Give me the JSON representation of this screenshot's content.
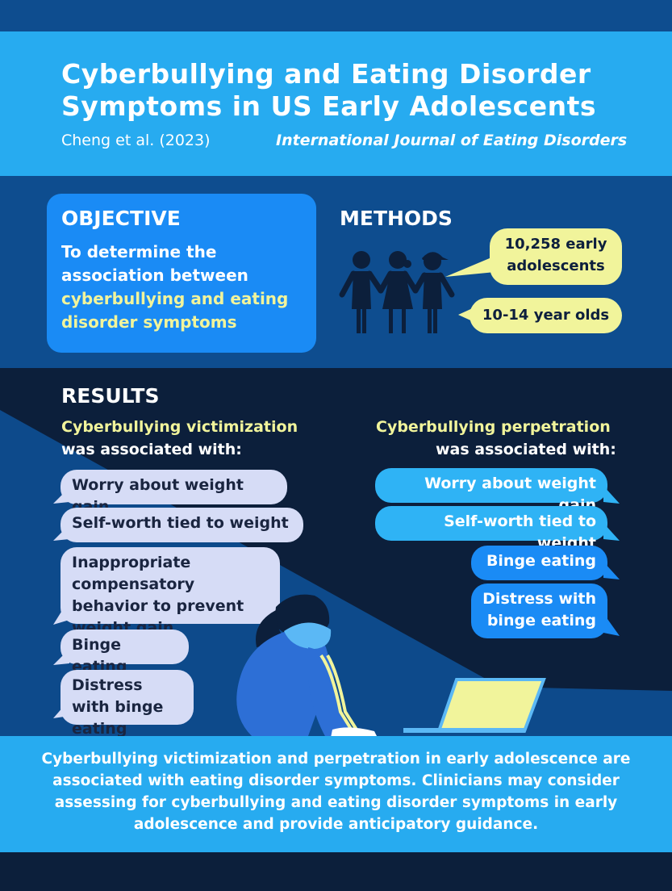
{
  "header": {
    "title": "Cyberbullying and Eating Disorder Symptoms in US Early Adolescents",
    "citation": "Cheng et al. (2023)",
    "journal": "International Journal of Eating Disorders"
  },
  "objective": {
    "heading": "OBJECTIVE",
    "text_plain": "To determine the association between",
    "text_highlight": "cyberbullying and eating disorder symptoms"
  },
  "methods": {
    "heading": "METHODS",
    "sample": "10,258 early adolescents",
    "ages": "10-14 year olds"
  },
  "results": {
    "heading": "RESULTS",
    "victimization": {
      "heading": "Cyberbullying victimization",
      "subheading": "was associated with:",
      "items": [
        "Worry about weight gain",
        "Self-worth tied to weight",
        "Inappropriate compensatory behavior to prevent weight gain",
        "Binge eating",
        "Distress with binge eating"
      ]
    },
    "perpetration": {
      "heading": "Cyberbullying perpetration",
      "subheading": "was associated with:",
      "items": [
        "Worry about weight gain",
        "Self-worth tied to weight",
        "Binge eating",
        "Distress with binge eating"
      ]
    }
  },
  "conclusion": "Cyberbullying victimization and perpetration in early adolescence are associated with eating disorder symptoms. Clinicians may consider assessing for cyberbullying and eating disorder symptoms in early adolescence and provide anticipatory guidance.",
  "colors": {
    "dark_navy": "#0c1f3b",
    "mid_blue": "#0e4d8f",
    "light_blue": "#27abf0",
    "accent_blue": "#1a8bf5",
    "highlight_yellow": "#f1f49b",
    "bubble_lavender": "#d6dcf6"
  },
  "icons": [
    "three-children-icon",
    "sad-girl-illustration",
    "laptop-illustration"
  ]
}
